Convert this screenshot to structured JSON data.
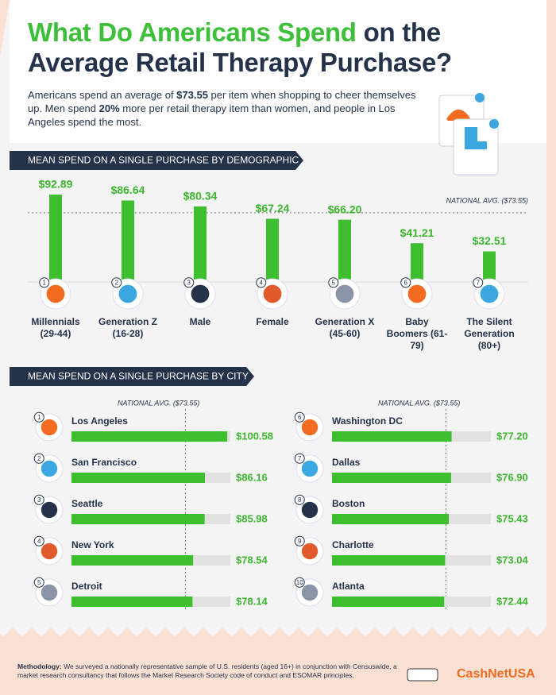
{
  "header": {
    "title_parts": [
      {
        "text": "What Do Americans Spend",
        "color": "#3dbf3a"
      },
      {
        "text": "on the Average Retail Therapy Purchase?",
        "color": "#24324a"
      }
    ],
    "subtitle": [
      {
        "text": "Americans spend an average of ",
        "bold": false
      },
      {
        "text": "$73.55",
        "bold": true
      },
      {
        "text": " per item when shopping to cheer themselves up. Men spend ",
        "bold": false
      },
      {
        "text": "20%",
        "bold": true
      },
      {
        "text": " more per retail therapy item than women, and people in Los Angeles spend the most.",
        "bold": false
      }
    ]
  },
  "chart_data": [
    {
      "type": "bar",
      "orientation": "vertical",
      "title": "MEAN SPEND ON A SINGLE PURCHASE BY DEMOGRAPHIC",
      "categories": [
        "Millennials (29-44)",
        "Generation Z (16-28)",
        "Male",
        "Female",
        "Generation X (45-60)",
        "Baby Boomers (61-79)",
        "The Silent Generation (80+)"
      ],
      "rank_labels": [
        "1",
        "2",
        "3",
        "4",
        "5",
        "6",
        "7"
      ],
      "values": [
        92.89,
        86.64,
        80.34,
        67.24,
        66.2,
        41.21,
        32.51
      ],
      "value_labels": [
        "$92.89",
        "$86.64",
        "$80.34",
        "$67.24",
        "$66.20",
        "$41.21",
        "$32.51"
      ],
      "color": "#3dbf2f",
      "reference_line": {
        "value": 73.55,
        "label": "NATIONAL AVG. ($73.55)"
      }
    },
    {
      "type": "bar",
      "orientation": "horizontal",
      "title": "MEAN SPEND ON A SINGLE PURCHASE BY CITY",
      "categories": [
        "Los Angeles",
        "San Francisco",
        "Seattle",
        "New York",
        "Detroit",
        "Washington DC",
        "Dallas",
        "Boston",
        "Charlotte",
        "Atlanta"
      ],
      "rank_labels": [
        "1",
        "2",
        "3",
        "4",
        "5",
        "6",
        "7",
        "8",
        "9",
        "10"
      ],
      "values": [
        100.58,
        86.16,
        85.98,
        78.54,
        78.14,
        77.2,
        76.9,
        75.43,
        73.04,
        72.44
      ],
      "value_labels": [
        "$100.58",
        "$86.16",
        "$85.98",
        "$78.54",
        "$78.14",
        "$77.20",
        "$76.90",
        "$75.43",
        "$73.04",
        "$72.44"
      ],
      "color": "#3dbf2f",
      "reference_line": {
        "value": 73.55,
        "label": "NATIONAL AVG. ($73.55)"
      }
    }
  ],
  "footer": {
    "methodology_label": "Methodology:",
    "methodology_text": "We surveyed a nationally representative sample of U.S. residents (aged 16+) in conjunction with Censuswide, a market research consultancy that follows the Market Research Society code of conduct and ESOMAR principles.",
    "brand": "CashNetUSA"
  }
}
